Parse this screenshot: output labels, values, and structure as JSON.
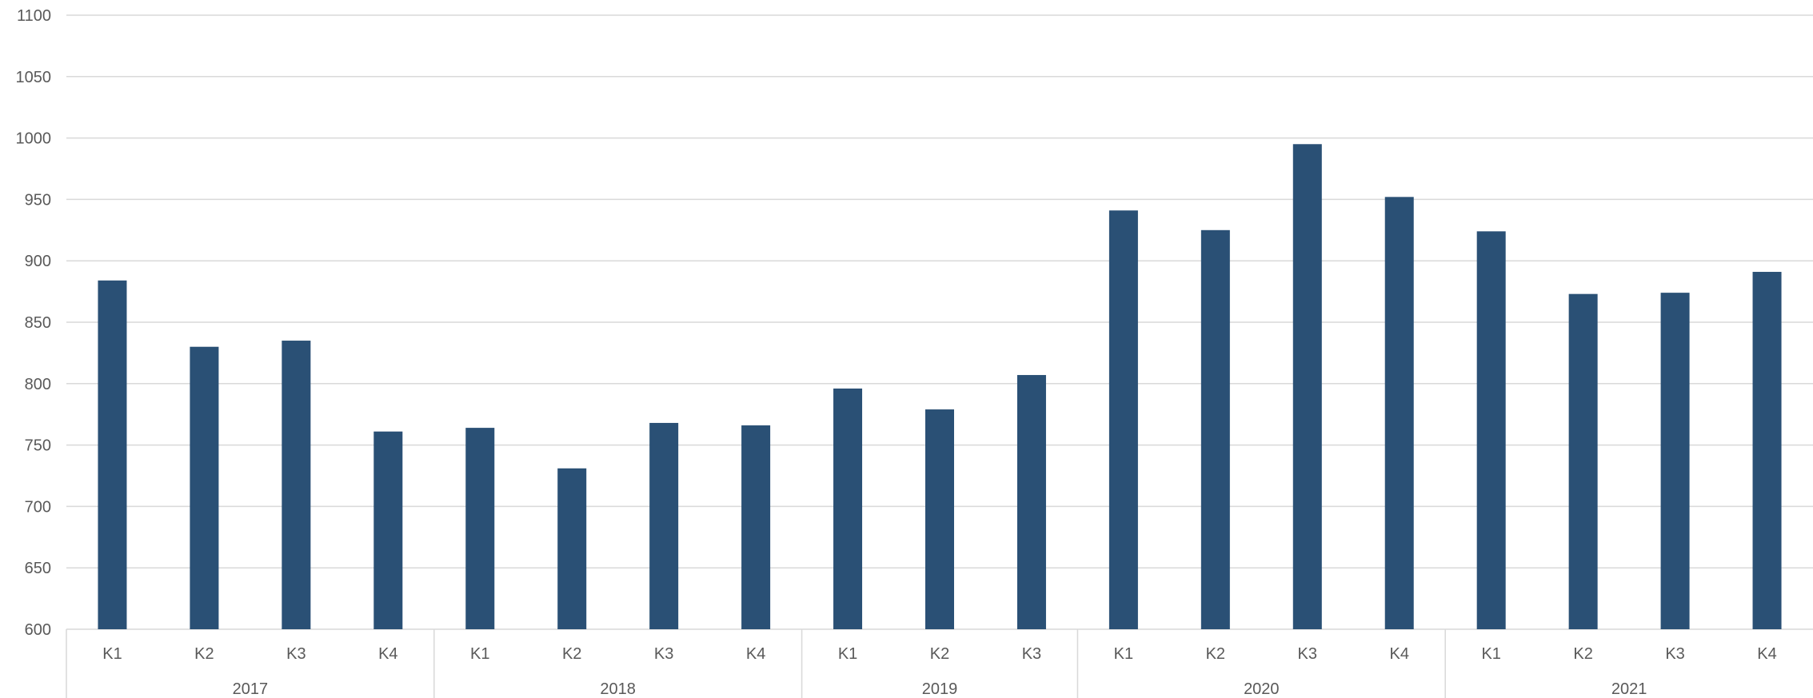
{
  "chart_data": {
    "type": "bar",
    "title": "",
    "xlabel": "",
    "ylabel": "",
    "ylim": [
      600,
      1100
    ],
    "yticks": [
      600,
      650,
      700,
      750,
      800,
      850,
      900,
      950,
      1000,
      1050,
      1100
    ],
    "grid": true,
    "legend": "none",
    "bar_color": "#2a5075",
    "groups": [
      {
        "label": "2017",
        "categories": [
          "K1",
          "K2",
          "K3",
          "K4"
        ],
        "values": [
          884,
          830,
          835,
          761
        ]
      },
      {
        "label": "2018",
        "categories": [
          "K1",
          "K2",
          "K3",
          "K4"
        ],
        "values": [
          764,
          731,
          768,
          766
        ]
      },
      {
        "label": "2019",
        "categories": [
          "K1",
          "K2",
          "K3"
        ],
        "values": [
          796,
          779,
          807
        ]
      },
      {
        "label": "2020",
        "categories": [
          "K1",
          "K2",
          "K3",
          "K4"
        ],
        "values": [
          941,
          925,
          995,
          952
        ]
      },
      {
        "label": "2021",
        "categories": [
          "K1",
          "K2",
          "K3",
          "K4"
        ],
        "values": [
          924,
          873,
          874,
          891
        ]
      }
    ]
  }
}
